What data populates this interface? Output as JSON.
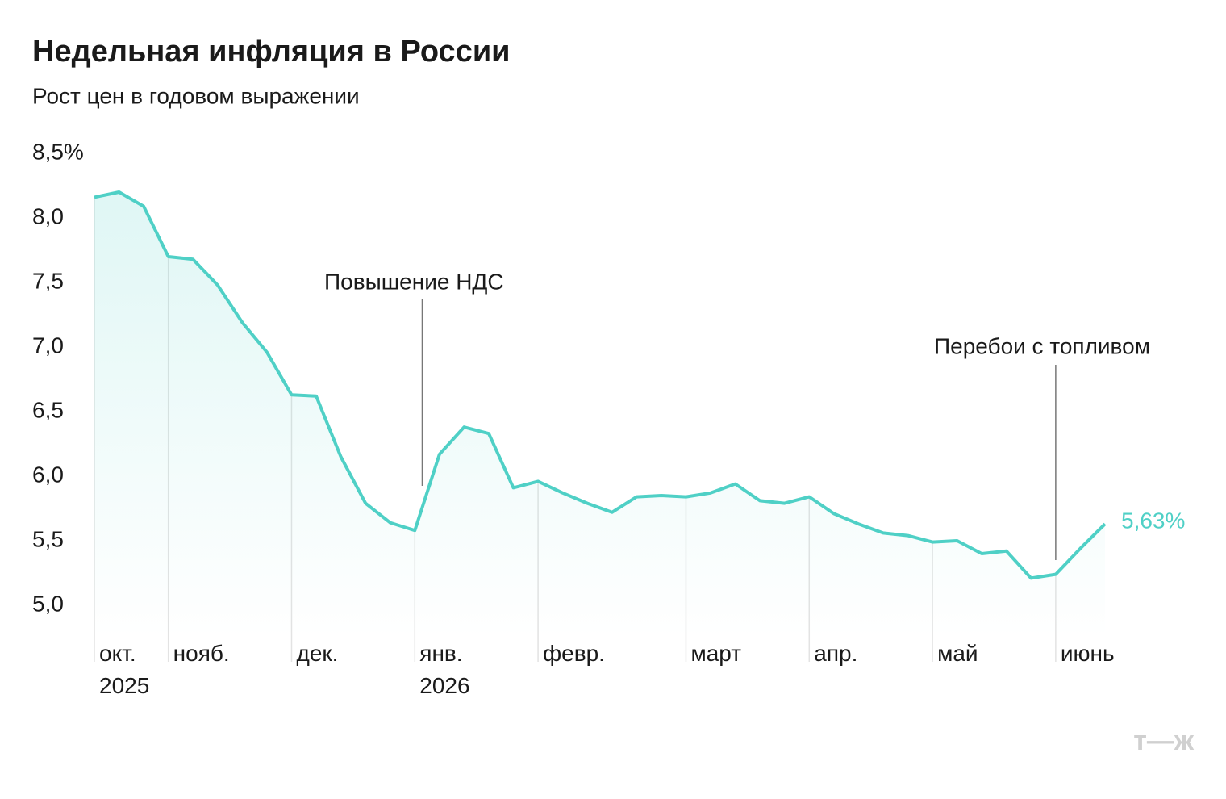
{
  "chart_data": {
    "type": "line",
    "title": "Недельная инфляция в России",
    "subtitle": "Рост цен в годовом выражении",
    "categories": [
      "окт.\n2025",
      null,
      null,
      "нояб.",
      null,
      null,
      null,
      null,
      "дек.",
      null,
      null,
      null,
      null,
      "янв.\n2026",
      null,
      null,
      null,
      null,
      "февр.",
      null,
      null,
      null,
      null,
      null,
      "март",
      null,
      null,
      null,
      null,
      "апр.",
      null,
      null,
      null,
      null,
      "май",
      null,
      null,
      null,
      null,
      "июнь",
      null,
      null
    ],
    "series": [
      {
        "name": "Инфляция",
        "color": "#4fd0c6",
        "values": [
          8.16,
          8.2,
          8.09,
          7.7,
          7.68,
          7.48,
          7.19,
          6.96,
          6.63,
          6.62,
          6.15,
          5.79,
          5.64,
          5.58,
          6.17,
          6.38,
          6.33,
          5.91,
          5.96,
          5.87,
          5.79,
          5.72,
          5.84,
          5.85,
          5.84,
          5.87,
          5.94,
          5.81,
          5.79,
          5.84,
          5.71,
          5.63,
          5.56,
          5.54,
          5.49,
          5.5,
          5.4,
          5.42,
          5.21,
          5.24,
          5.44,
          5.63
        ],
        "value_labels": [
          null,
          null,
          null,
          null,
          null,
          null,
          null,
          null,
          null,
          null,
          null,
          null,
          null,
          null,
          null,
          null,
          null,
          null,
          null,
          null,
          null,
          null,
          null,
          null,
          null,
          null,
          null,
          null,
          null,
          null,
          null,
          null,
          null,
          null,
          null,
          null,
          null,
          null,
          null,
          null,
          null,
          "5,63%"
        ]
      }
    ],
    "ylim": [
      5.0,
      8.5
    ],
    "yticks": [
      {
        "value": 5.0,
        "label": "5,0"
      },
      {
        "value": 5.5,
        "label": "5,5"
      },
      {
        "value": 6.0,
        "label": "6,0"
      },
      {
        "value": 6.5,
        "label": "6,5"
      },
      {
        "value": 7.0,
        "label": "7,0"
      },
      {
        "value": 7.5,
        "label": "7,5"
      },
      {
        "value": 8.0,
        "label": "8,0"
      },
      {
        "value": 8.5,
        "label": "8,5%"
      }
    ],
    "annotations": [
      "Повышение НДС",
      "Перебои с топливом"
    ],
    "source_logo": "т—ж"
  }
}
